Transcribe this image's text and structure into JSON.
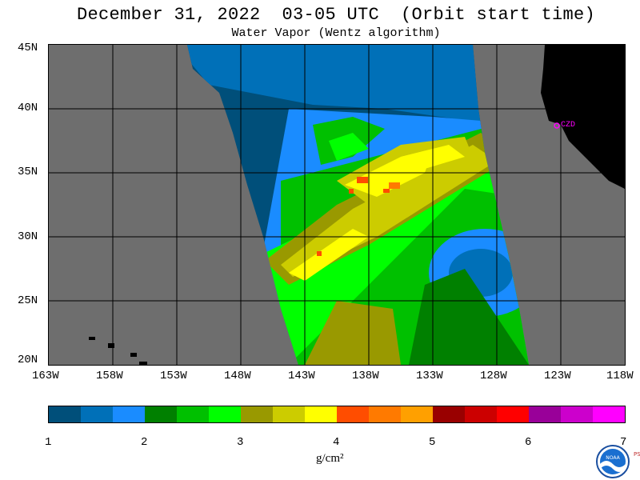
{
  "title": "December 31, 2022  03-05 UTC  (Orbit start time)",
  "subtitle": "Water Vapor (Wentz algorithm)",
  "lat_labels": [
    "45N",
    "40N",
    "35N",
    "30N",
    "25N",
    "20N"
  ],
  "lon_labels": [
    "163W",
    "158W",
    "153W",
    "148W",
    "143W",
    "138W",
    "133W",
    "128W",
    "123W",
    "118W"
  ],
  "station_label": "CZD",
  "colorbar": {
    "ticks": [
      "1",
      "2",
      "3",
      "4",
      "5",
      "6",
      "7"
    ],
    "units": "g/cm²",
    "colors": [
      "#004f7a",
      "#0070b8",
      "#1a8cff",
      "#008000",
      "#00c000",
      "#00ff00",
      "#999900",
      "#cccc00",
      "#ffff00",
      "#ff4d00",
      "#ff7a00",
      "#ffa000",
      "#990000",
      "#cc0000",
      "#ff0000",
      "#990099",
      "#cc00cc",
      "#ff00ff"
    ]
  },
  "colors": {
    "land_gray": "#6e6e6e",
    "land_black": "#000000",
    "grid": "#000000",
    "marker": "#ff00ff"
  },
  "logo_text": "NOAA",
  "psl_text": "PSL"
}
